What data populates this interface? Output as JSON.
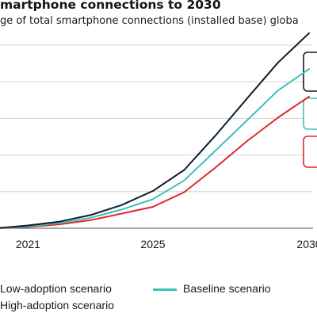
{
  "title": "martphone connections to 2030",
  "subtitle": "ge of total smartphone connections (installed base) globa",
  "chart_data": {
    "type": "line",
    "x": [
      2020,
      2021,
      2022,
      2023,
      2024,
      2025,
      2026,
      2027,
      2028,
      2029,
      2030
    ],
    "xticks": [
      "2021",
      "2025",
      "2030"
    ],
    "xlim": [
      2020,
      2030
    ],
    "ylim": [
      0,
      100
    ],
    "grid": true,
    "legend_position": "bottom",
    "series": [
      {
        "name": "Low-adoption scenario",
        "color": "#e0262d",
        "values": [
          0,
          0.7,
          2.1,
          4.4,
          8.0,
          11.7,
          19.7,
          33.1,
          47.4,
          60.4,
          71.9
        ]
      },
      {
        "name": "Baseline scenario",
        "color": "#3dbfb6",
        "values": [
          0,
          1.0,
          2.8,
          5.7,
          10.2,
          15.9,
          26.1,
          42.4,
          58.7,
          75.2,
          87.0
        ]
      },
      {
        "name": "High-adoption scenario",
        "color": "#0f1a2e",
        "values": [
          0,
          1.5,
          3.6,
          7.2,
          12.7,
          20.4,
          31.8,
          50.6,
          70.6,
          90.4,
          106.6
        ]
      }
    ]
  },
  "legend": {
    "low": "Low-adoption scenario",
    "baseline": "Baseline scenario",
    "high": "High-adoption scenario"
  }
}
